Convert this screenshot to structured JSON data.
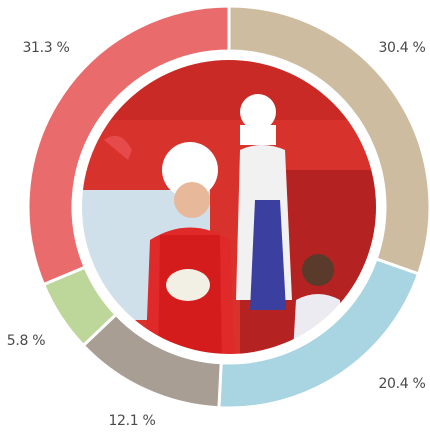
{
  "chart_data": {
    "type": "donut",
    "values": [
      30.4,
      20.4,
      12.1,
      5.8,
      31.3
    ],
    "value_labels": [
      "30.4 %",
      "20.4 %",
      "12.1 %",
      "5.8 %",
      "31.3 %"
    ],
    "colors": [
      "#cdbc9f",
      "#a9d5e3",
      "#a89e94",
      "#bdd699",
      "#ea6b6b"
    ]
  }
}
